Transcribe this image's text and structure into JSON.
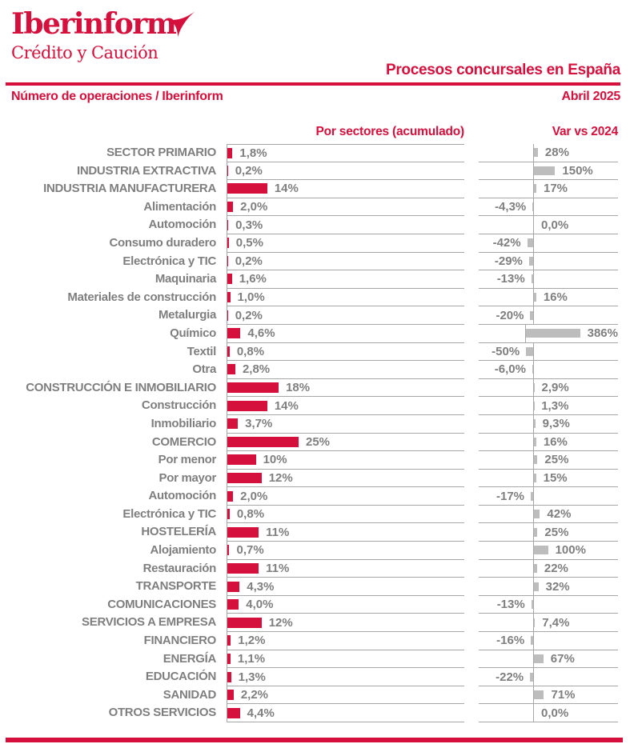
{
  "colors": {
    "accent_red": "#d5103c",
    "bar_red": "#d5103c",
    "bar_gray": "#bdbdbd",
    "text_gray": "#7f7f7f",
    "grid_gray": "#a7a7a7"
  },
  "header": {
    "logo_title": "Iberinform",
    "logo_subtitle": "Crédito y Caución",
    "logo_mark_icon": "iberinform-swoosh",
    "report_title": "Procesos concursales en España",
    "source_label": "Número de operaciones / Iberinform",
    "period_label": "Abril 2025"
  },
  "chart_data": {
    "type": "bar",
    "orientation": "horizontal",
    "grid": true,
    "legend_position": "column-headers",
    "categories": [
      "SECTOR PRIMARIO",
      "INDUSTRIA EXTRACTIVA",
      "INDUSTRIA MANUFACTURERA",
      "Alimentación",
      "Automoción",
      "Consumo duradero",
      "Electrónica y TIC",
      "Maquinaria",
      "Materiales de construcción",
      "Metalurgia",
      "Químico",
      "Textil",
      "Otra",
      "CONSTRUCCIÓN E INMOBILIARIO",
      "Construcción",
      "Inmobiliario",
      "COMERCIO",
      "Por menor",
      "Por mayor",
      "Automoción",
      "Electrónica y TIC",
      "HOSTELERÍA",
      "Alojamiento",
      "Restauración",
      "TRANSPORTE",
      "COMUNICACIONES",
      "SERVICIOS A EMPRESA",
      "FINANCIERO",
      "ENERGÍA",
      "EDUCACIÓN",
      "SANIDAD",
      "OTROS SERVICIOS"
    ],
    "series": [
      {
        "name": "Por sectores (acumulado)",
        "color": "#d5103c",
        "xlim": [
          0,
          25
        ],
        "values": [
          1.8,
          0.2,
          14,
          2.0,
          0.3,
          0.5,
          0.2,
          1.6,
          1.0,
          0.2,
          4.6,
          0.8,
          2.8,
          18,
          14,
          3.7,
          25,
          10,
          12,
          2.0,
          0.8,
          11,
          0.7,
          11,
          4.3,
          4.0,
          12,
          1.2,
          1.1,
          1.3,
          2.2,
          4.4
        ],
        "labels": [
          "1,8%",
          "0,2%",
          "14%",
          "2,0%",
          "0,3%",
          "0,5%",
          "0,2%",
          "1,6%",
          "1,0%",
          "0,2%",
          "4,6%",
          "0,8%",
          "2,8%",
          "18%",
          "14%",
          "3,7%",
          "25%",
          "10%",
          "12%",
          "2,0%",
          "0,8%",
          "11%",
          "0,7%",
          "11%",
          "4,3%",
          "4,0%",
          "12%",
          "1,2%",
          "1,1%",
          "1,3%",
          "2,2%",
          "4,4%"
        ]
      },
      {
        "name": "Var vs 2024",
        "color": "#bdbdbd",
        "xlim": [
          -50,
          386
        ],
        "values": [
          28,
          150,
          17,
          -4.3,
          0,
          -42,
          -29,
          -13,
          16,
          -20,
          386,
          -50,
          -6.0,
          2.9,
          1.3,
          9.3,
          16,
          25,
          15,
          -17,
          42,
          25,
          100,
          22,
          32,
          -13,
          7.4,
          -16,
          67,
          -22,
          71,
          0
        ],
        "labels": [
          "28%",
          "150%",
          "17%",
          "-4,3%",
          "0,0%",
          "-42%",
          "-29%",
          "-13%",
          "16%",
          "-20%",
          "386%",
          "-50%",
          "-6,0%",
          "2,9%",
          "1,3%",
          "9,3%",
          "16%",
          "25%",
          "15%",
          "-17%",
          "42%",
          "25%",
          "100%",
          "22%",
          "32%",
          "-13%",
          "7,4%",
          "-16%",
          "67%",
          "-22%",
          "71%",
          "0,0%"
        ]
      }
    ]
  }
}
